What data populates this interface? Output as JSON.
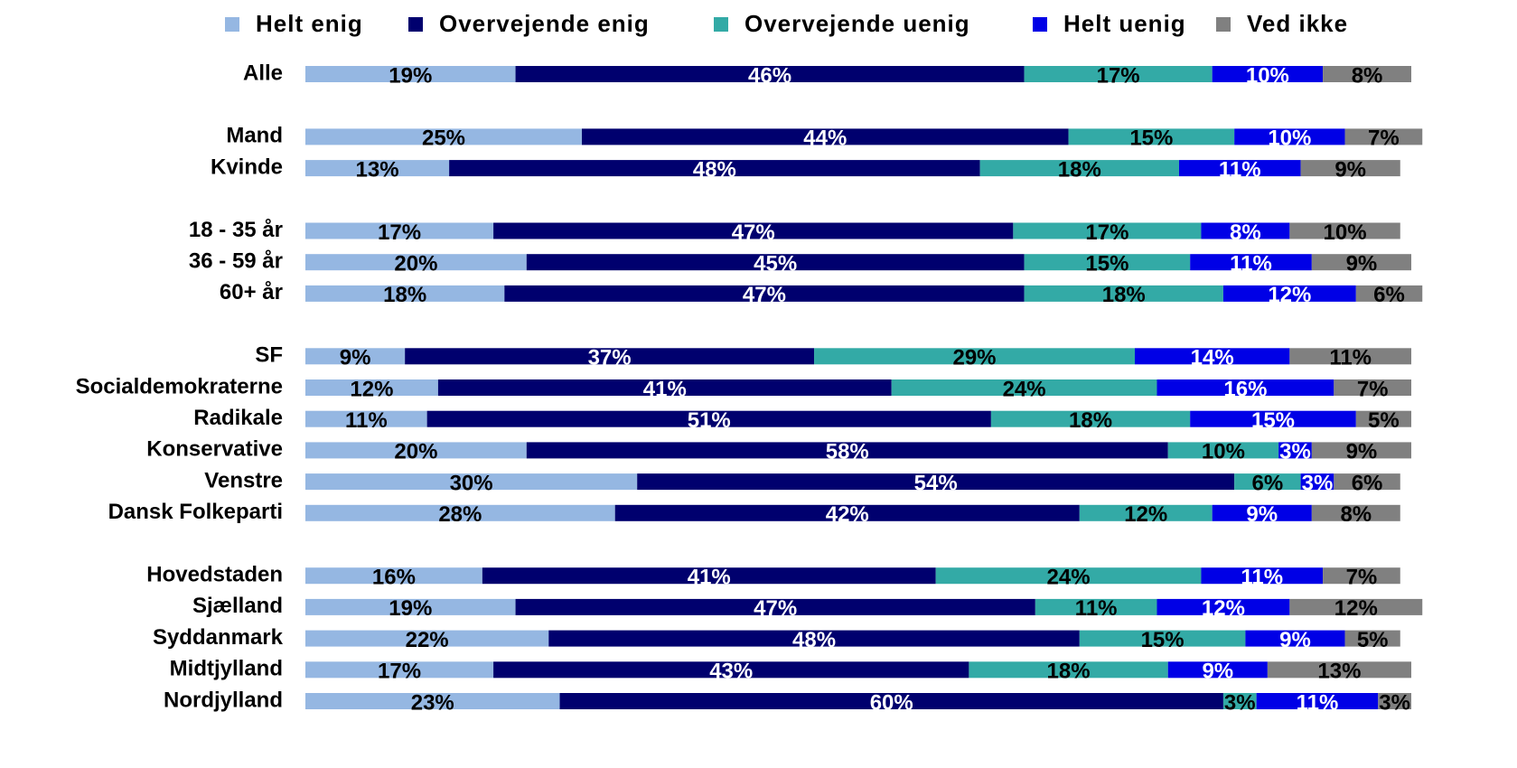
{
  "chart_data": {
    "type": "stacked-bar-horizontal",
    "categories": [
      "Alle",
      null,
      "Mand",
      "Kvinde",
      null,
      "18 - 35 år",
      "36 - 59 år",
      "60+ år",
      null,
      "SF",
      "Socialdemokraterne",
      "Radikale",
      "Konservative",
      "Venstre",
      "Dansk Folkeparti",
      null,
      "Hovedstaden",
      "Sjælland",
      "Syddanmark",
      "Midtjylland",
      "Nordjylland"
    ],
    "xlim": [
      0,
      100
    ],
    "legend": "top",
    "series": [
      {
        "name": "Helt enig",
        "color": "#95b7e2",
        "label_color": "#000000",
        "values": [
          19,
          null,
          25,
          13,
          null,
          17,
          20,
          18,
          null,
          9,
          12,
          11,
          20,
          30,
          28,
          null,
          16,
          19,
          22,
          17,
          23
        ],
        "value_labels": [
          "19%",
          null,
          "25%",
          "13%",
          null,
          "17%",
          "20%",
          "18%",
          null,
          "9%",
          "12%",
          "11%",
          "20%",
          "30%",
          "28%",
          null,
          "16%",
          "19%",
          "22%",
          "17%",
          "23%"
        ]
      },
      {
        "name": "Overvejende enig",
        "color": "#00006e",
        "label_color": "#ffffff",
        "values": [
          46,
          null,
          44,
          48,
          null,
          47,
          45,
          47,
          null,
          37,
          41,
          51,
          58,
          54,
          42,
          null,
          41,
          47,
          48,
          43,
          60
        ],
        "value_labels": [
          "46%",
          null,
          "44%",
          "48%",
          null,
          "47%",
          "45%",
          "47%",
          null,
          "37%",
          "41%",
          "51%",
          "58%",
          "54%",
          "42%",
          null,
          "41%",
          "47%",
          "48%",
          "43%",
          "60%"
        ]
      },
      {
        "name": "Overvejende uenig",
        "color": "#33aaa6",
        "label_color": "#000000",
        "values": [
          17,
          null,
          15,
          18,
          null,
          17,
          15,
          18,
          null,
          29,
          24,
          18,
          10,
          6,
          12,
          null,
          24,
          11,
          15,
          18,
          3
        ],
        "value_labels": [
          "17%",
          null,
          "15%",
          "18%",
          null,
          "17%",
          "15%",
          "18%",
          null,
          "29%",
          "24%",
          "18%",
          "10%",
          "6%",
          "12%",
          null,
          "24%",
          "11%",
          "15%",
          "18%",
          "3%"
        ]
      },
      {
        "name": "Helt uenig",
        "color": "#0000e6",
        "label_color": "#ffffff",
        "values": [
          10,
          null,
          10,
          11,
          null,
          8,
          11,
          12,
          null,
          14,
          16,
          15,
          3,
          3,
          9,
          null,
          11,
          12,
          9,
          9,
          11
        ],
        "value_labels": [
          "10%",
          null,
          "10%",
          "11%",
          null,
          "8%",
          "11%",
          "12%",
          null,
          "14%",
          "16%",
          "15%",
          "3%",
          "3%",
          "9%",
          null,
          "11%",
          "12%",
          "9%",
          "9%",
          "11%"
        ]
      },
      {
        "name": "Ved ikke",
        "color": "#808080",
        "label_color": "#000000",
        "values": [
          8,
          null,
          7,
          9,
          null,
          10,
          9,
          6,
          null,
          11,
          7,
          5,
          9,
          6,
          8,
          null,
          7,
          12,
          5,
          13,
          3
        ],
        "value_labels": [
          "8%",
          null,
          "7%",
          "9%",
          null,
          "10%",
          "9%",
          "6%",
          null,
          "11%",
          "7%",
          "5%",
          "9%",
          "6%",
          "8%",
          null,
          "7%",
          "12%",
          "5%",
          "13%",
          "3%"
        ]
      }
    ]
  }
}
